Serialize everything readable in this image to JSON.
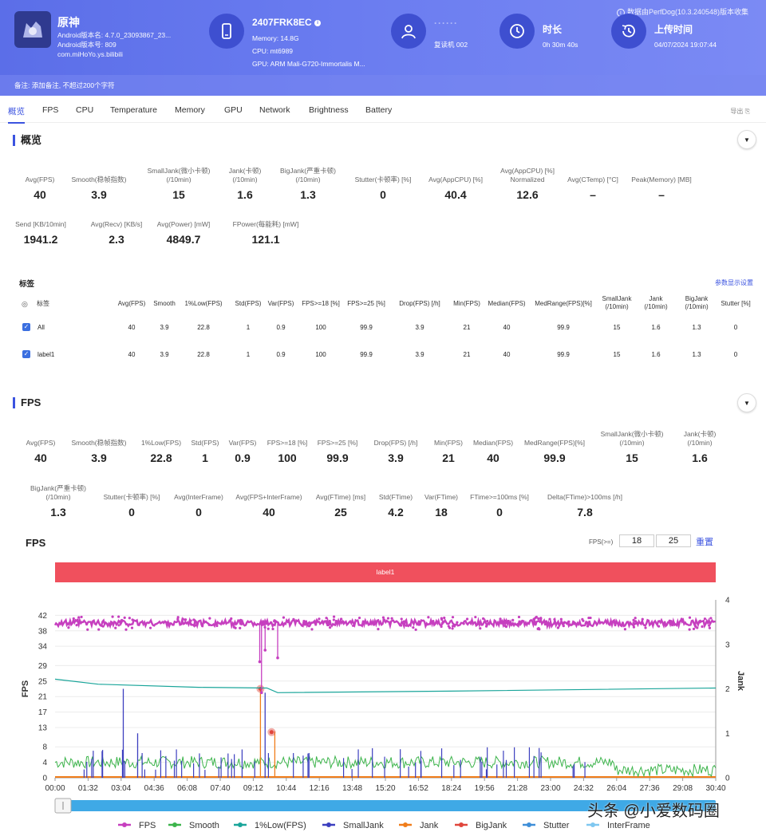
{
  "header": {
    "data_source_note": "数据由PerfDog(10.3.240548)版本收集",
    "app": {
      "name": "原神",
      "lines": [
        "Android版本名: 4.7.0_23093867_23...",
        "Android版本号: 809",
        "com.miHoYo.ys.bilibili"
      ]
    },
    "device": {
      "model": "2407FRK8EC",
      "lines": [
        "Memory: 14.8G",
        "CPU: mt6989",
        "GPU: ARM Mali-G720-Immortalis M..."
      ]
    },
    "user": {
      "name": "······",
      "line": "复读机 002"
    },
    "duration": {
      "label": "时长",
      "value": "0h 30m 40s"
    },
    "upload": {
      "label": "上传时间",
      "value": "04/07/2024 19:07:44"
    },
    "remark": "备注: 添加备注, 不超过200个字符"
  },
  "tabs": [
    "概览",
    "FPS",
    "CPU",
    "Temperature",
    "Memory",
    "GPU",
    "Network",
    "Brightness",
    "Battery"
  ],
  "export_label": "导出",
  "overview": {
    "title": "概览",
    "stats_row1": [
      {
        "label": [
          "Avg(FPS)"
        ],
        "value": "40"
      },
      {
        "label": [
          "Smooth(稳帧指数)"
        ],
        "value": "3.9"
      },
      {
        "label": [
          "SmallJank(微小卡顿)",
          "(/10min)"
        ],
        "value": "15"
      },
      {
        "label": [
          "Jank(卡顿)",
          "(/10min)"
        ],
        "value": "1.6"
      },
      {
        "label": [
          "BigJank(严重卡顿)",
          "(/10min)"
        ],
        "value": "1.3"
      },
      {
        "label": [
          "Stutter(卡顿率) [%]"
        ],
        "value": "0"
      },
      {
        "label": [
          "Avg(AppCPU) [%]"
        ],
        "value": "40.4"
      },
      {
        "label": [
          "Avg(AppCPU) [%]",
          "Normalized"
        ],
        "value": "12.6"
      },
      {
        "label": [
          "Avg(CTemp) [°C]"
        ],
        "value": "–"
      },
      {
        "label": [
          "Peak(Memory) [MB]"
        ],
        "value": "–"
      }
    ],
    "stats_row2": [
      {
        "label": [
          "Send [KB/10min]"
        ],
        "value": "1941.2"
      },
      {
        "label": [
          "Avg(Recv) [KB/s]"
        ],
        "value": "2.3"
      },
      {
        "label": [
          "Avg(Power) [mW]"
        ],
        "value": "4849.7"
      },
      {
        "label": [
          "FPower(每能耗) [mW]"
        ],
        "value": "121.1"
      }
    ]
  },
  "labels_table": {
    "title": "标签",
    "setting_link": "参数显示设置",
    "headers": [
      "标签",
      "Avg(FPS)",
      "Smooth",
      "1%Low(FPS)",
      "Std(FPS)",
      "Var(FPS)",
      "FPS>=18 [%]",
      "FPS>=25 [%]",
      "Drop(FPS) [/h]",
      "Min(FPS)",
      "Median(FPS)",
      "MedRange(FPS)[%]",
      "SmallJank\n(/10min)",
      "Jank\n(/10min)",
      "BigJank\n(/10min)",
      "Stutter [%]"
    ],
    "rows": [
      {
        "name": "All",
        "cells": [
          "40",
          "3.9",
          "22.8",
          "1",
          "0.9",
          "100",
          "99.9",
          "3.9",
          "21",
          "40",
          "99.9",
          "15",
          "1.6",
          "1.3",
          "0"
        ]
      },
      {
        "name": "label1",
        "cells": [
          "40",
          "3.9",
          "22.8",
          "1",
          "0.9",
          "100",
          "99.9",
          "3.9",
          "21",
          "40",
          "99.9",
          "15",
          "1.6",
          "1.3",
          "0"
        ]
      }
    ]
  },
  "fps_section": {
    "title": "FPS",
    "stats_row1": [
      {
        "label": [
          "Avg(FPS)"
        ],
        "value": "40"
      },
      {
        "label": [
          "Smooth(稳帧指数)"
        ],
        "value": "3.9"
      },
      {
        "label": [
          "1%Low(FPS)"
        ],
        "value": "22.8"
      },
      {
        "label": [
          "Std(FPS)"
        ],
        "value": "1"
      },
      {
        "label": [
          "Var(FPS)"
        ],
        "value": "0.9"
      },
      {
        "label": [
          "FPS>=18 [%]"
        ],
        "value": "100"
      },
      {
        "label": [
          "FPS>=25 [%]"
        ],
        "value": "99.9"
      },
      {
        "label": [
          "Drop(FPS) [/h]"
        ],
        "value": "3.9"
      },
      {
        "label": [
          "Min(FPS)"
        ],
        "value": "21"
      },
      {
        "label": [
          "Median(FPS)"
        ],
        "value": "40"
      },
      {
        "label": [
          "MedRange(FPS)[%]"
        ],
        "value": "99.9"
      },
      {
        "label": [
          "SmallJank(微小卡顿)",
          "(/10min)"
        ],
        "value": "15"
      },
      {
        "label": [
          "Jank(卡顿)",
          "(/10min)"
        ],
        "value": "1.6"
      }
    ],
    "stats_row2": [
      {
        "label": [
          "BigJank(严重卡顿)",
          "(/10min)"
        ],
        "value": "1.3"
      },
      {
        "label": [
          "Stutter(卡顿率) [%]"
        ],
        "value": "0"
      },
      {
        "label": [
          "Avg(InterFrame)"
        ],
        "value": "0"
      },
      {
        "label": [
          "Avg(FPS+InterFrame)"
        ],
        "value": "40"
      },
      {
        "label": [
          "Avg(FTime) [ms]"
        ],
        "value": "25"
      },
      {
        "label": [
          "Std(FTime)"
        ],
        "value": "4.2"
      },
      {
        "label": [
          "Var(FTime)"
        ],
        "value": "18"
      },
      {
        "label": [
          "FTime>=100ms [%]"
        ],
        "value": "0"
      },
      {
        "label": [
          "Delta(FTime)>100ms [/h]"
        ],
        "value": "7.8"
      }
    ]
  },
  "chart_controls": {
    "title": "FPS",
    "threshold_label": "FPS(>=)",
    "threshold_1": "18",
    "threshold_2": "25",
    "reset_label": "重置",
    "label_bar": "label1"
  },
  "chart_data": {
    "type": "line",
    "title": "FPS",
    "ylabel": "FPS",
    "y2label": "Jank",
    "y_ticks": [
      0,
      4,
      8,
      13,
      17,
      21,
      25,
      29,
      34,
      38,
      42
    ],
    "ylim": [
      0,
      46
    ],
    "y2_ticks": [
      0,
      1,
      2,
      3,
      4
    ],
    "y2lim": [
      0,
      4
    ],
    "x_ticks": [
      "00:00",
      "01:32",
      "03:04",
      "04:36",
      "06:08",
      "07:40",
      "09:12",
      "10:44",
      "12:16",
      "13:48",
      "15:20",
      "16:52",
      "18:24",
      "19:56",
      "21:28",
      "23:00",
      "24:32",
      "26:04",
      "27:36",
      "29:08",
      "30:40"
    ],
    "xlim_seconds": [
      0,
      1840
    ],
    "series": [
      {
        "name": "FPS",
        "color": "#c63fbf",
        "approx_level": 40,
        "dips": [
          [
            570,
            30
          ],
          [
            575,
            22
          ],
          [
            585,
            33
          ],
          [
            620,
            31
          ]
        ]
      },
      {
        "name": "Smooth",
        "color": "#3cb44b",
        "approx_level": 4,
        "tail_from": 1560,
        "tail_level": 2
      },
      {
        "name": "1%Low(FPS)",
        "color": "#1aa59a",
        "points": [
          [
            0,
            25.5
          ],
          [
            120,
            24.2
          ],
          [
            400,
            23.4
          ],
          [
            590,
            23.2
          ],
          [
            620,
            22.0
          ],
          [
            1100,
            22.4
          ],
          [
            1840,
            23.2
          ]
        ]
      },
      {
        "name": "SmallJank",
        "color": "#3c3fbf"
      },
      {
        "name": "Jank",
        "color": "#f07d1a"
      },
      {
        "name": "BigJank",
        "color": "#e0463c"
      },
      {
        "name": "Stutter",
        "color": "#3f8fd8"
      },
      {
        "name": "InterFrame",
        "color": "#7fc7f0"
      }
    ],
    "legend_position": "bottom",
    "grid": true
  },
  "watermark": "头条 @小爱数码圈"
}
